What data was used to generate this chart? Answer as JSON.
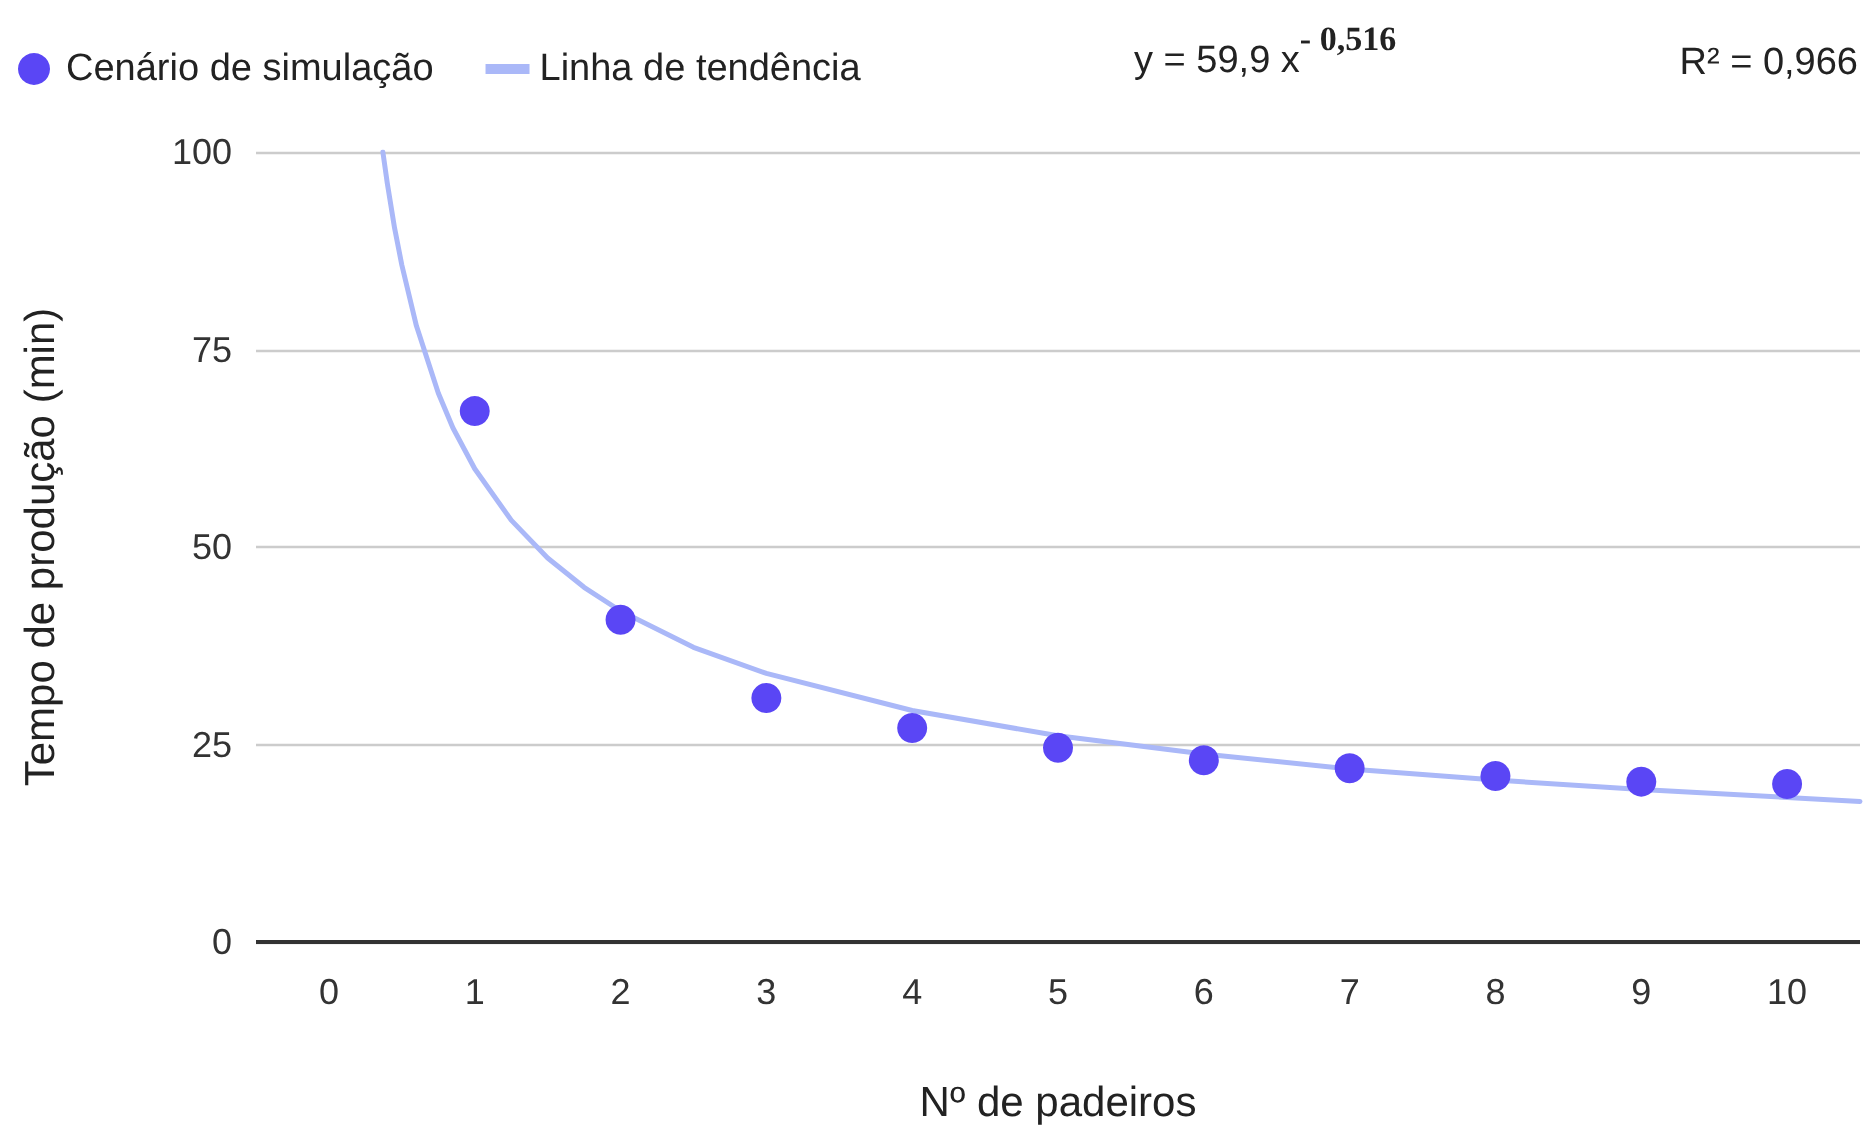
{
  "chart_data": {
    "type": "scatter",
    "xlabel": "Nº de padeiros",
    "ylabel": "Tempo de produção (min)",
    "xlim": [
      -0.5,
      10.5
    ],
    "xticks": [
      0,
      1,
      2,
      3,
      4,
      5,
      6,
      7,
      8,
      9,
      10
    ],
    "ylim": [
      0,
      100
    ],
    "yticks": [
      0,
      25,
      50,
      75,
      100
    ],
    "grid": "y",
    "legend": "top left",
    "annotations": [
      "y = 59,9 x$^{- 0,516}$",
      "R² = 0,966"
    ],
    "series": [
      {
        "name": "Cenário de simulação",
        "marker": "circle",
        "color": "#5a46f5",
        "x": [
          1,
          2,
          3,
          4,
          5,
          6,
          7,
          8,
          9,
          10
        ],
        "values": [
          67.2,
          40.8,
          30.9,
          27.1,
          24.6,
          23.0,
          22.0,
          21.0,
          20.3,
          20.0
        ]
      },
      {
        "name": "Linha de tendência",
        "type": "line",
        "marker": "none",
        "color": "#aab8f8",
        "x": [
          0.37,
          0.4,
          0.45,
          0.5,
          0.6,
          0.75,
          0.85,
          1,
          1.25,
          1.5,
          1.75,
          2,
          2.5,
          3,
          4,
          5,
          6,
          7,
          8,
          9,
          10.5
        ],
        "values": [
          100,
          96.1,
          90.4,
          85.7,
          78.0,
          69.5,
          65.1,
          59.9,
          53.4,
          48.6,
          44.9,
          41.9,
          37.3,
          34.0,
          29.3,
          26.1,
          23.8,
          21.9,
          20.5,
          19.3,
          17.8
        ]
      }
    ]
  }
}
